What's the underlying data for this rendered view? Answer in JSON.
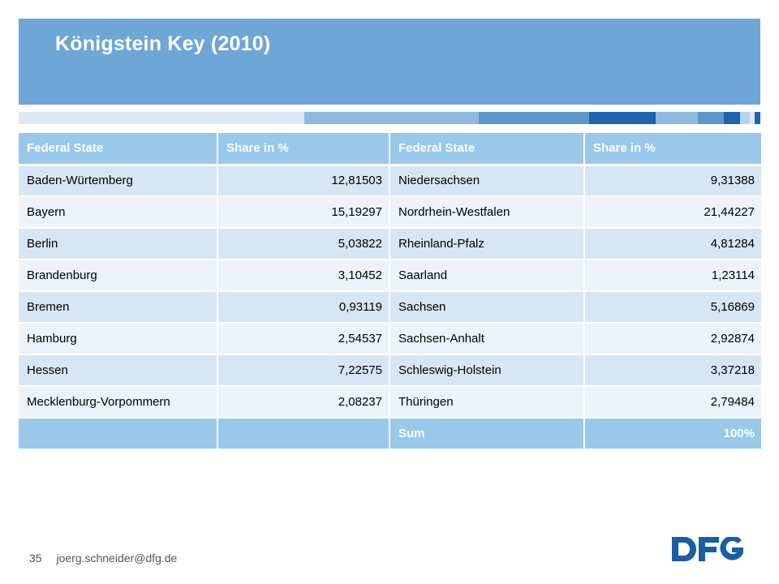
{
  "title": "Königstein Key (2010)",
  "colors": {
    "title_band": "#6ea6d6",
    "header_row": "#99c8ea",
    "row_odd": "#d6e6f4",
    "row_even": "#ecf3fa",
    "logo": "#1a5ea5"
  },
  "table": {
    "headers": [
      "Federal State",
      "Share in %",
      "Federal State",
      "Share in %"
    ],
    "rows": [
      [
        "Baden-Würtemberg",
        "12,81503",
        "Niedersachsen",
        "9,31388"
      ],
      [
        "Bayern",
        "15,19297",
        "Nordrhein-Westfalen",
        "21,44227"
      ],
      [
        "Berlin",
        "5,03822",
        "Rheinland-Pfalz",
        "4,81284"
      ],
      [
        "Brandenburg",
        "3,10452",
        "Saarland",
        "1,23114"
      ],
      [
        "Bremen",
        "0,93119",
        "Sachsen",
        "5,16869"
      ],
      [
        "Hamburg",
        "2,54537",
        "Sachsen-Anhalt",
        "2,92874"
      ],
      [
        "Hessen",
        "7,22575",
        "Schleswig-Holstein",
        "3,37218"
      ],
      [
        "Mecklenburg-Vorpommern",
        "2,08237",
        "Thüringen",
        "2,79484"
      ]
    ],
    "sum_label": "Sum",
    "sum_value": "100%"
  },
  "footer": {
    "page_number": "35",
    "email": "joerg.schneider@dfg.de"
  },
  "logo": {
    "text": "DFG",
    "icon": "dfg-logo"
  }
}
